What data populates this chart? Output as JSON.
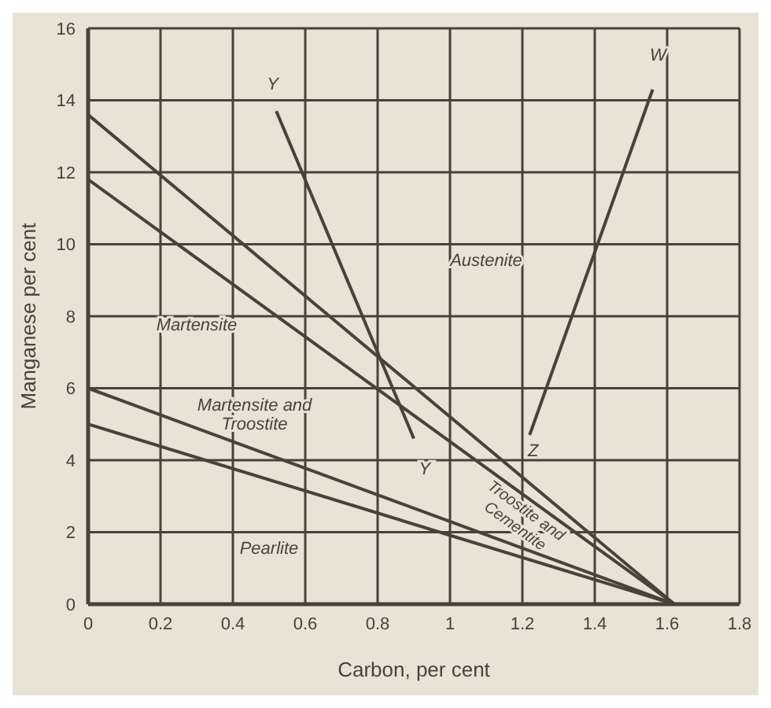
{
  "chart_data": {
    "type": "line",
    "xlabel": "Carbon, per cent",
    "ylabel": "Manganese per cent",
    "xlim": [
      0,
      1.8
    ],
    "xticks": [
      0,
      0.2,
      0.4,
      0.6,
      0.8,
      1.0,
      1.2,
      1.4,
      1.6,
      1.8
    ],
    "ylim": [
      0,
      16
    ],
    "yticks": [
      0,
      2,
      4,
      6,
      8,
      10,
      12,
      14,
      16
    ],
    "grid": true,
    "marker": "none",
    "line_style": "solid",
    "series": [
      {
        "color": "#4a4238",
        "x": [
          0,
          1.62
        ],
        "values": [
          13.6,
          0
        ]
      },
      {
        "color": "#4a4238",
        "x": [
          0,
          1.62
        ],
        "values": [
          11.8,
          0
        ]
      },
      {
        "color": "#4a4238",
        "x": [
          0,
          1.62
        ],
        "values": [
          6.0,
          0
        ]
      },
      {
        "color": "#4a4238",
        "x": [
          0,
          1.62
        ],
        "values": [
          5.0,
          0
        ]
      },
      {
        "color": "#4a4238",
        "x": [
          0.52,
          0.9
        ],
        "values": [
          13.7,
          4.6
        ]
      },
      {
        "color": "#4a4238",
        "x": [
          1.22,
          1.56
        ],
        "values": [
          4.7,
          14.3
        ]
      }
    ],
    "annotations": [
      "Y",
      "Y",
      "W",
      "Z",
      "Austenite",
      "Martensite",
      "Martensite and Troostite",
      "Troostite and Cementite",
      "Pearlite"
    ]
  }
}
